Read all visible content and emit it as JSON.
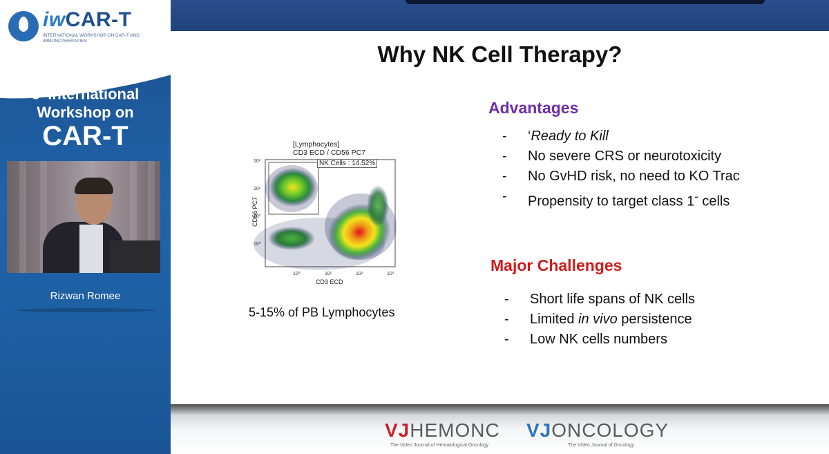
{
  "sidebar": {
    "logo": {
      "brand_prefix": "iw",
      "brand_main": "CAR-T",
      "subtitle": "INTERNATIONAL WORKSHOP ON CAR-T AND IMMUNOTHERAPIES"
    },
    "edition_number": "5",
    "edition_suffix": "th",
    "edition_line1": "International",
    "edition_line2": "Workshop on",
    "edition_line3": "CAR-T",
    "speaker_name": "Rizwan Romee"
  },
  "slide": {
    "title": "Why NK Cell Therapy?",
    "flow_plot": {
      "header_line1": "[Lymphocytes]",
      "header_line2": "CD3 ECD / CD56 PC7",
      "gate_label": "NK Cells : 14.52%",
      "y_label": "CD56 PC7",
      "x_label": "CD3 ECD",
      "y_ticks": [
        "10³",
        "10²",
        "10¹",
        "10⁰"
      ],
      "x_ticks": [
        "10⁰",
        "10¹",
        "10²",
        "10³"
      ]
    },
    "caption": "5-15% of PB Lymphocytes",
    "advantages": {
      "heading": "Advantages",
      "items": [
        {
          "prefix": "‘",
          "italic": "Ready to Kill",
          "suffix": ""
        },
        {
          "prefix": "No severe CRS or neurotoxicity",
          "italic": "",
          "suffix": ""
        },
        {
          "prefix": "No GvHD risk, no need to KO Trac",
          "italic": "",
          "suffix": ""
        },
        {
          "prefix": "Propensity to target class 1",
          "sup": "-",
          "suffix": " cells"
        }
      ]
    },
    "challenges": {
      "heading": "Major Challenges",
      "items": [
        {
          "prefix": "Short life spans of NK cells",
          "italic": "",
          "suffix": ""
        },
        {
          "prefix": "Limited ",
          "italic": "in vivo",
          "suffix": " persistence"
        },
        {
          "prefix": "Low NK cells numbers",
          "italic": "",
          "suffix": ""
        }
      ]
    },
    "bullet": "-"
  },
  "footer": {
    "logo1_a": "VJ",
    "logo1_b": "HEMONC",
    "logo1_sub": "The Video Journal of Hematological Oncology",
    "logo2_a": "VJ",
    "logo2_b": "ONCOLOGY",
    "logo2_sub": "The Video Journal of Oncology"
  },
  "colors": {
    "sidebar_blue": "#1f63a9",
    "advantages": "#6f2da8",
    "challenges": "#d11b1b",
    "vj_red": "#c8232b",
    "vj_blue": "#2b74c0"
  }
}
